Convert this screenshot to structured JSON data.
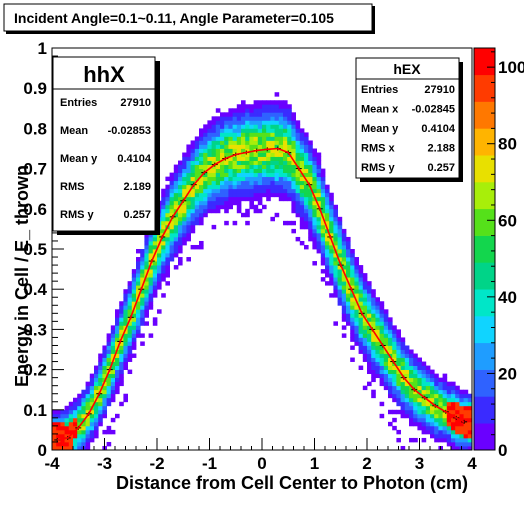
{
  "canvas_title": "Incident Angle=0.1~0.11, Angle Parameter=0.105",
  "chart_data": {
    "type": "heatmap",
    "xlabel": "Distance from Cell Center to Photon (cm)",
    "ylabel": "Energy in Cell / E_ thrown",
    "xlim": [
      -4,
      4
    ],
    "ylim": [
      0,
      1
    ],
    "x_ticks": [
      "-4",
      "-3",
      "-2",
      "-1",
      "0",
      "1",
      "2",
      "3",
      "4"
    ],
    "y_ticks": [
      "0",
      "0.1",
      "0.2",
      "0.3",
      "0.4",
      "0.5",
      "0.6",
      "0.7",
      "0.8",
      "0.9",
      "1"
    ],
    "z_ticks": [
      "0",
      "20",
      "40",
      "60",
      "80",
      "100"
    ],
    "z_range": [
      0,
      105
    ],
    "palette": [
      "#6a00ff",
      "#3a2bff",
      "#2f62ff",
      "#1f9dff",
      "#10d4ff",
      "#00e6c8",
      "#00d488",
      "#13d64d",
      "#55e11a",
      "#a8ee0a",
      "#e8e000",
      "#ffb400",
      "#ff7800",
      "#ff3b00",
      "#ff0000"
    ],
    "profile_color": "#ff0000",
    "stat_boxes": [
      {
        "title": "hhX",
        "rows": [
          [
            "Entries",
            "27910"
          ],
          [
            "Mean",
            "-0.02853"
          ],
          [
            "Mean y",
            "0.4104"
          ],
          [
            "RMS",
            "2.189"
          ],
          [
            "RMS y",
            "0.257"
          ]
        ]
      },
      {
        "title": "hEX",
        "rows": [
          [
            "Entries",
            "27910"
          ],
          [
            "Mean x",
            "-0.02845"
          ],
          [
            "Mean y",
            "0.4104"
          ],
          [
            "RMS x",
            "2.188"
          ],
          [
            "RMS y",
            "0.257"
          ]
        ]
      }
    ],
    "profile": {
      "x": [
        -3.9,
        -3.7,
        -3.5,
        -3.3,
        -3.1,
        -2.9,
        -2.7,
        -2.5,
        -2.3,
        -2.1,
        -1.9,
        -1.7,
        -1.5,
        -1.3,
        -1.1,
        -0.9,
        -0.7,
        -0.5,
        -0.3,
        -0.1,
        0.1,
        0.3,
        0.5,
        0.7,
        0.9,
        1.1,
        1.3,
        1.5,
        1.7,
        1.9,
        2.1,
        2.3,
        2.5,
        2.7,
        2.9,
        3.1,
        3.3,
        3.5,
        3.7,
        3.85
      ],
      "y": [
        0.025,
        0.03,
        0.055,
        0.09,
        0.14,
        0.2,
        0.27,
        0.33,
        0.4,
        0.47,
        0.53,
        0.58,
        0.62,
        0.66,
        0.69,
        0.71,
        0.725,
        0.735,
        0.74,
        0.745,
        0.748,
        0.75,
        0.74,
        0.7,
        0.66,
        0.6,
        0.53,
        0.46,
        0.4,
        0.34,
        0.3,
        0.26,
        0.22,
        0.18,
        0.15,
        0.13,
        0.11,
        0.095,
        0.08,
        0.07
      ]
    }
  }
}
